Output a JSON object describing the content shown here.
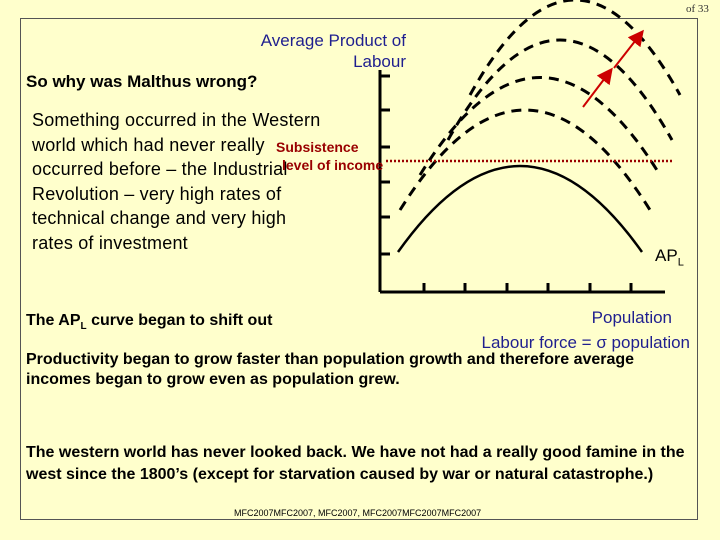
{
  "slide": {
    "page_indicator": "of 33",
    "heading": "So why was Malthus wrong?",
    "paragraph": "Something occurred in the Western world which had never really occurred before – the Industrial Revolution – very high rates of technical change and very high rates of investment",
    "shift_text_main": "The AP",
    "shift_text_sub": "L",
    "shift_text_rest": " curve began to shift out",
    "productivity_text": "Productivity began to grow faster than population growth and therefore average incomes began to grow even as population grew.",
    "western_text": "The western world has never looked back.  We have not had a really good famine in the west since the 1800’s (except for starvation caused by war or natural catastrophe.)",
    "footer": "MFC2007MFC2007, MFC2007, MFC2007MFC2007MFC2007"
  },
  "diagram": {
    "y_axis_label": "Average Product of Labour",
    "x_axis_label_line1": "Population",
    "x_axis_label_line2": "Labour force = σ population",
    "subsistence_line1": "Subsistence",
    "subsistence_line2": "level of income",
    "curve_label_main": "AP",
    "curve_label_sub": "L",
    "colors": {
      "axis": "#000000",
      "curve": "#000000",
      "subsistence_line": "#990000",
      "arrow": "#cc0000",
      "axis_label": "#1f1f8f"
    }
  }
}
